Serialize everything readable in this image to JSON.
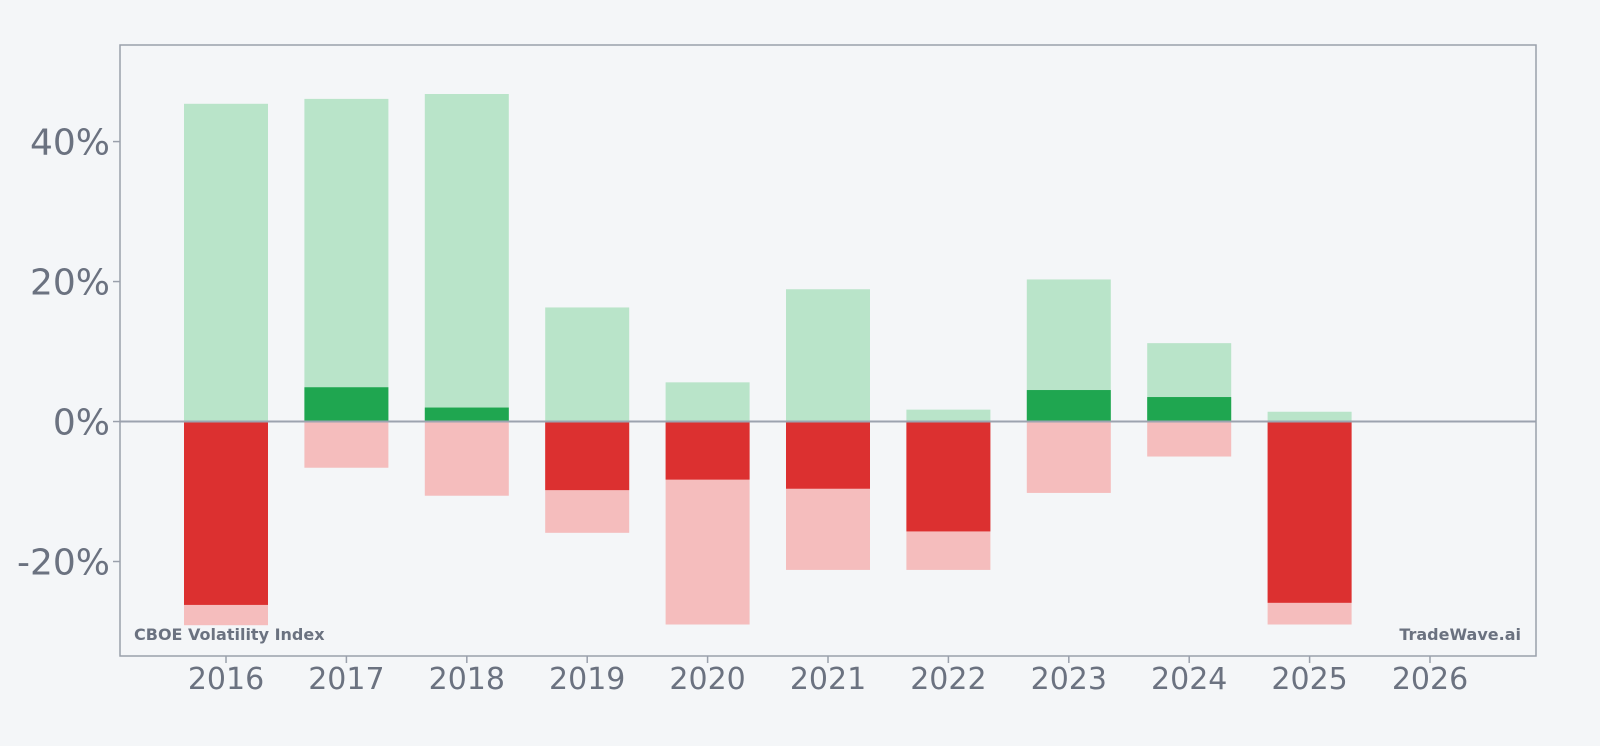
{
  "chart_data": {
    "type": "bar",
    "title": "",
    "xlabel": "",
    "ylabel": "",
    "categories": [
      "2016",
      "2017",
      "2018",
      "2019",
      "2020",
      "2021",
      "2022",
      "2023",
      "2024",
      "2025",
      "2026"
    ],
    "ylim": [
      -33.5,
      53.8
    ],
    "y_ticks": [
      -20,
      0,
      20,
      40
    ],
    "y_tick_labels": [
      "-20%",
      "0%",
      "20%",
      "40%"
    ],
    "grid": false,
    "legend": "none",
    "series": [
      {
        "role": "range-high",
        "values": [
          45.4,
          46.1,
          46.8,
          16.3,
          5.6,
          18.9,
          1.7,
          20.3,
          11.2,
          1.4,
          null
        ]
      },
      {
        "role": "range-low",
        "values": [
          -29.1,
          -6.6,
          -10.6,
          -15.9,
          -29.0,
          -21.2,
          -21.2,
          -10.2,
          -5.0,
          -29.0,
          null
        ]
      },
      {
        "role": "annual-return",
        "values": [
          -26.2,
          4.9,
          2.0,
          -9.8,
          -8.3,
          -9.6,
          -15.7,
          4.5,
          3.5,
          -25.9,
          null
        ]
      }
    ],
    "colors": {
      "positive_strong": "#1fa650",
      "positive_light": "#b9e4c9",
      "negative_strong": "#dc3030",
      "negative_light": "#f5bdbd",
      "axis": "#9ca3af",
      "frame": "#9aa0ab",
      "text": "#6b7280",
      "background": "#f4f6f8"
    }
  },
  "labels": {
    "instrument": "CBOE Volatility Index",
    "brand": "TradeWave.ai"
  }
}
